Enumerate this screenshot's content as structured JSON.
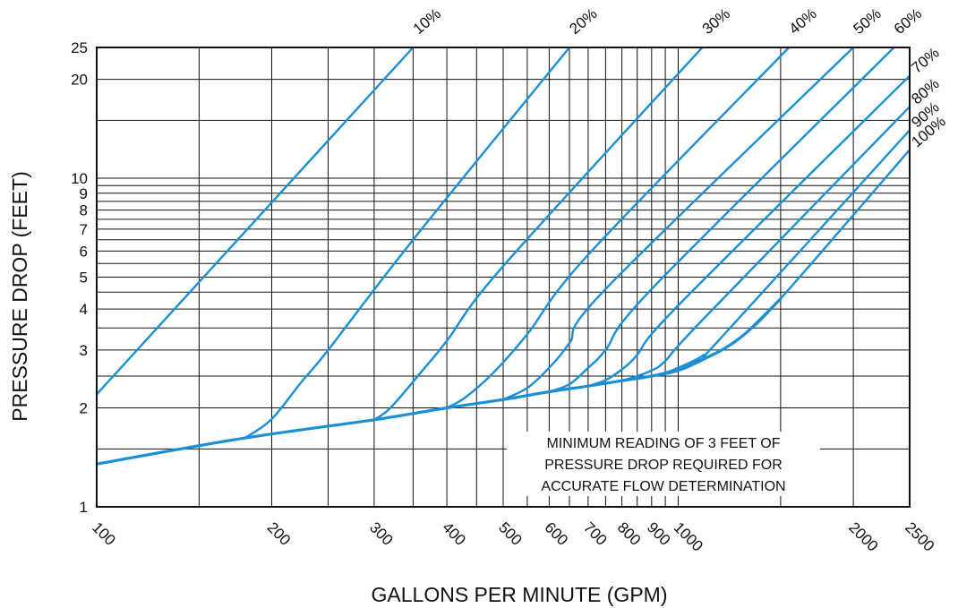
{
  "chart_data": {
    "type": "line",
    "title": "",
    "xlabel": "GALLONS PER MINUTE (GPM)",
    "ylabel": "PRESSURE DROP (FEET)",
    "x_scale": "log",
    "y_scale": "log",
    "xlim": [
      100,
      2500
    ],
    "ylim": [
      1,
      25
    ],
    "grid": true,
    "x_gridlines": [
      100,
      150,
      200,
      250,
      300,
      350,
      400,
      450,
      500,
      550,
      600,
      650,
      700,
      750,
      800,
      850,
      900,
      950,
      1000,
      1500,
      2000,
      2500
    ],
    "y_gridlines": [
      1,
      1.5,
      2,
      2.5,
      3,
      3.5,
      4,
      4.5,
      5,
      5.5,
      6,
      6.5,
      7,
      7.5,
      8,
      8.5,
      9,
      9.5,
      10,
      15,
      20,
      25
    ],
    "x_ticks": [
      {
        "value": 100,
        "label": "100"
      },
      {
        "value": 200,
        "label": "200"
      },
      {
        "value": 300,
        "label": "300"
      },
      {
        "value": 400,
        "label": "400"
      },
      {
        "value": 500,
        "label": "500"
      },
      {
        "value": 600,
        "label": "600"
      },
      {
        "value": 700,
        "label": "700"
      },
      {
        "value": 800,
        "label": "800"
      },
      {
        "value": 900,
        "label": "900"
      },
      {
        "value": 1000,
        "label": "1000"
      },
      {
        "value": 2000,
        "label": "2000"
      },
      {
        "value": 2500,
        "label": "2500"
      }
    ],
    "y_ticks": [
      {
        "value": 1,
        "label": "1"
      },
      {
        "value": 2,
        "label": "2"
      },
      {
        "value": 3,
        "label": "3"
      },
      {
        "value": 4,
        "label": "4"
      },
      {
        "value": 5,
        "label": "5"
      },
      {
        "value": 6,
        "label": "6"
      },
      {
        "value": 7,
        "label": "7"
      },
      {
        "value": 8,
        "label": "8"
      },
      {
        "value": 9,
        "label": "9"
      },
      {
        "value": 10,
        "label": "10"
      },
      {
        "value": 20,
        "label": "20"
      },
      {
        "value": 25,
        "label": "25"
      }
    ],
    "base_curve": [
      [
        100,
        1.35
      ],
      [
        180,
        1.62
      ],
      [
        300,
        1.84
      ],
      [
        400,
        2.0
      ],
      [
        500,
        2.12
      ],
      [
        600,
        2.24
      ],
      [
        700,
        2.33
      ],
      [
        800,
        2.42
      ],
      [
        900,
        2.5
      ],
      [
        1000,
        2.6
      ],
      [
        1100,
        2.8
      ],
      [
        1200,
        3.03
      ],
      [
        1300,
        3.35
      ],
      [
        1400,
        3.8
      ],
      [
        1500,
        4.3
      ]
    ],
    "series": [
      {
        "name": "10%",
        "points": [
          [
            100,
            2.2
          ],
          [
            350,
            25
          ]
        ]
      },
      {
        "name": "20%",
        "points": [
          [
            180,
            1.62
          ],
          [
            200,
            1.85
          ],
          [
            225,
            2.4
          ],
          [
            250,
            3.0
          ],
          [
            350,
            6.5
          ],
          [
            650,
            25
          ]
        ]
      },
      {
        "name": "30%",
        "points": [
          [
            300,
            1.84
          ],
          [
            320,
            2.0
          ],
          [
            360,
            2.55
          ],
          [
            400,
            3.2
          ],
          [
            500,
            5.4
          ],
          [
            1100,
            25
          ]
        ]
      },
      {
        "name": "40%",
        "points": [
          [
            400,
            2.0
          ],
          [
            430,
            2.15
          ],
          [
            480,
            2.55
          ],
          [
            550,
            3.35
          ],
          [
            700,
            5.85
          ],
          [
            1550,
            25
          ]
        ]
      },
      {
        "name": "50%",
        "points": [
          [
            500,
            2.12
          ],
          [
            550,
            2.3
          ],
          [
            600,
            2.65
          ],
          [
            650,
            3.15
          ],
          [
            750,
            4.6
          ],
          [
            2000,
            25
          ]
        ]
      },
      {
        "name": "60%",
        "points": [
          [
            600,
            2.24
          ],
          [
            650,
            2.36
          ],
          [
            700,
            2.65
          ],
          [
            750,
            3.0
          ],
          [
            900,
            4.6
          ],
          [
            2350,
            25
          ]
        ]
      },
      {
        "name": "70%",
        "points": [
          [
            700,
            2.33
          ],
          [
            750,
            2.43
          ],
          [
            800,
            2.62
          ],
          [
            850,
            2.9
          ],
          [
            1000,
            4.1
          ],
          [
            2500,
            20.5
          ]
        ]
      },
      {
        "name": "80%",
        "points": [
          [
            800,
            2.42
          ],
          [
            850,
            2.5
          ],
          [
            900,
            2.6
          ],
          [
            950,
            2.78
          ],
          [
            1100,
            3.7
          ],
          [
            2500,
            16.5
          ]
        ]
      },
      {
        "name": "90%",
        "points": [
          [
            880,
            2.48
          ],
          [
            950,
            2.56
          ],
          [
            1000,
            2.65
          ],
          [
            1100,
            2.88
          ],
          [
            1200,
            3.35
          ],
          [
            2500,
            14.0
          ]
        ]
      },
      {
        "name": "100%",
        "points": [
          [
            950,
            2.55
          ],
          [
            1050,
            2.72
          ],
          [
            1200,
            3.03
          ],
          [
            1300,
            3.35
          ],
          [
            1500,
            4.3
          ],
          [
            2500,
            12.2
          ]
        ]
      }
    ],
    "annotations": [
      "MINIMUM READING OF 3 FEET OF",
      "PRESSURE DROP REQUIRED FOR",
      "ACCURATE FLOW DETERMINATION"
    ],
    "colors": {
      "curve": "#1a8fd6",
      "grid": "#111111",
      "frame": "#111111"
    }
  }
}
